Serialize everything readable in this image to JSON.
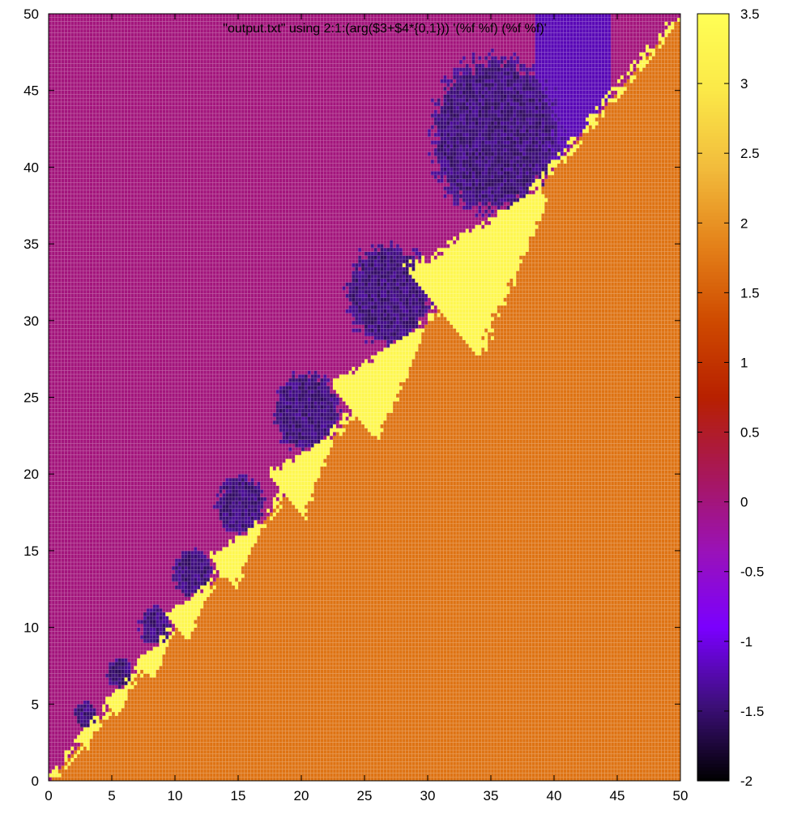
{
  "chart_data": {
    "type": "heatmap",
    "title": "\"output.txt\" using 2:1:(arg($3+$4*{0,1})) '(%f %f) (%f %f)'",
    "xlabel": "",
    "ylabel": "",
    "xlim": [
      0,
      50
    ],
    "ylim": [
      0,
      50
    ],
    "x_ticks": [
      "0",
      "5",
      "10",
      "15",
      "20",
      "25",
      "30",
      "35",
      "40",
      "45",
      "50"
    ],
    "y_ticks": [
      "0",
      "5",
      "10",
      "15",
      "20",
      "25",
      "30",
      "35",
      "40",
      "45",
      "50"
    ],
    "colorbar": {
      "range": [
        -2,
        3.5
      ],
      "ticks": [
        "-2",
        "-1.5",
        "-1",
        "-0.5",
        "0",
        "0.5",
        "1",
        "1.5",
        "2",
        "2.5",
        "3",
        "3.5"
      ],
      "palette": [
        "#000000",
        "#3d0f7a",
        "#7a00ff",
        "#9a12b8",
        "#a8175a",
        "#b72000",
        "#cf4a00",
        "#e4821a",
        "#f2bc3c",
        "#fbe848",
        "#ffff55"
      ]
    },
    "grid": "dense cell grid (0.25 spacing)",
    "regions": {
      "upper_left_value": 0.0,
      "lower_right_value": 1.7,
      "diagonal_branch_value": 3.3,
      "dark_lobe_value": -1.6,
      "vertical_cut_x": 38.5
    },
    "diagonal_branches": [
      {
        "tip": [
          3.5,
          3.6
        ],
        "length": 1.5,
        "spread": 0.7
      },
      {
        "tip": [
          6.3,
          6.3
        ],
        "length": 2.3,
        "spread": 0.8
      },
      {
        "tip": [
          9.3,
          9.2
        ],
        "length": 2.8,
        "spread": 1.0
      },
      {
        "tip": [
          12.3,
          12.4
        ],
        "length": 3.5,
        "spread": 1.2
      },
      {
        "tip": [
          16.4,
          16.6
        ],
        "length": 4.5,
        "spread": 1.5
      },
      {
        "tip": [
          22.0,
          22.3
        ],
        "length": 5.5,
        "spread": 2.0
      },
      {
        "tip": [
          29.0,
          29.4
        ],
        "length": 8.0,
        "spread": 2.6
      },
      {
        "tip": [
          38.5,
          38.5
        ],
        "length": 12.0,
        "spread": 4.0
      }
    ]
  }
}
